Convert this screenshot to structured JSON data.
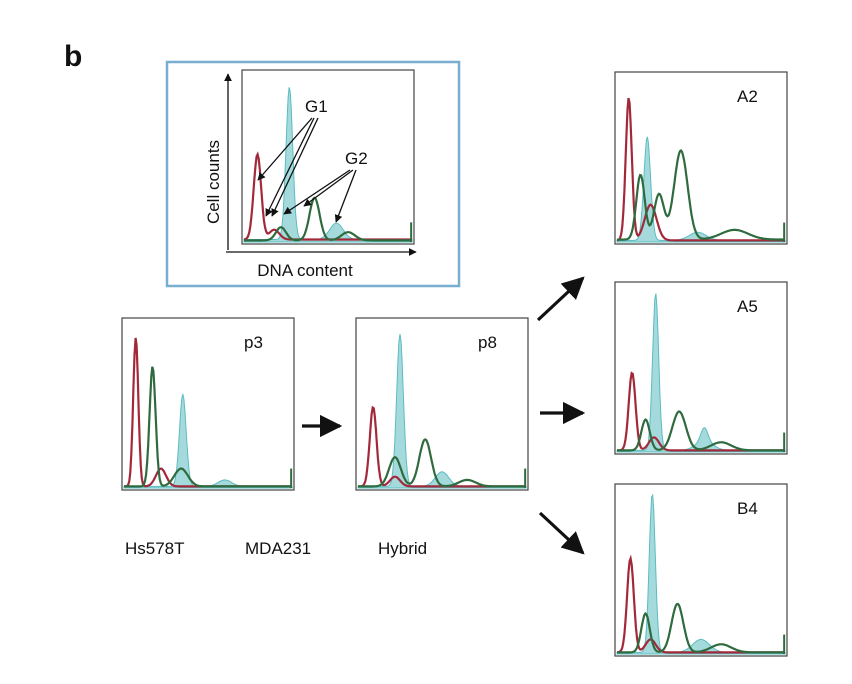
{
  "panel_label": "b",
  "legend": [
    {
      "label": "Hs578T",
      "color": "#a3293a"
    },
    {
      "label": "MDA231",
      "color": "#2f6b3f"
    },
    {
      "label": "Hybrid",
      "color": "#5bbcc0"
    }
  ],
  "inset": {
    "ylabel": "Cell counts",
    "xlabel": "DNA content",
    "annotations": [
      "G1",
      "G2"
    ],
    "border_color": "#7aaed0"
  },
  "chart_data": [
    {
      "type": "area",
      "name": "inset",
      "label": "",
      "x_range": [
        0,
        1
      ],
      "y_range": [
        0,
        1
      ],
      "hs578t": {
        "peaks": [
          [
            0.08,
            0.52,
            0.022
          ],
          [
            0.18,
            0.06,
            0.03
          ]
        ],
        "base": 0.015
      },
      "mda231": {
        "peaks": [
          [
            0.22,
            0.08,
            0.03
          ],
          [
            0.42,
            0.26,
            0.03
          ],
          [
            0.62,
            0.05,
            0.04
          ]
        ],
        "base": 0.01
      },
      "hybrid": {
        "peaks": [
          [
            0.27,
            0.93,
            0.02
          ],
          [
            0.55,
            0.1,
            0.04
          ]
        ],
        "base": 0.015
      }
    },
    {
      "type": "area",
      "name": "p3",
      "label": "p3",
      "x_range": [
        0,
        1
      ],
      "y_range": [
        0,
        1
      ],
      "hs578t": {
        "peaks": [
          [
            0.07,
            0.92,
            0.015
          ],
          [
            0.22,
            0.11,
            0.03
          ]
        ],
        "base": 0.01
      },
      "mda231": {
        "peaks": [
          [
            0.17,
            0.74,
            0.018
          ],
          [
            0.34,
            0.11,
            0.04
          ]
        ],
        "base": 0.01
      },
      "hybrid": {
        "peaks": [
          [
            0.35,
            0.57,
            0.02
          ],
          [
            0.6,
            0.04,
            0.04
          ]
        ],
        "base": 0.01
      }
    },
    {
      "type": "area",
      "name": "p8",
      "label": "p8",
      "x_range": [
        0,
        1
      ],
      "y_range": [
        0,
        1
      ],
      "hs578t": {
        "peaks": [
          [
            0.09,
            0.49,
            0.02
          ],
          [
            0.22,
            0.06,
            0.03
          ]
        ],
        "base": 0.01
      },
      "mda231": {
        "peaks": [
          [
            0.22,
            0.18,
            0.035
          ],
          [
            0.4,
            0.29,
            0.035
          ],
          [
            0.65,
            0.04,
            0.05
          ]
        ],
        "base": 0.01
      },
      "hybrid": {
        "peaks": [
          [
            0.25,
            0.94,
            0.02
          ],
          [
            0.5,
            0.09,
            0.04
          ]
        ],
        "base": 0.01
      }
    },
    {
      "type": "area",
      "name": "A2",
      "label": "A2",
      "x_range": [
        0,
        1
      ],
      "y_range": [
        0,
        1
      ],
      "hs578t": {
        "peaks": [
          [
            0.07,
            0.88,
            0.018
          ],
          [
            0.2,
            0.22,
            0.035
          ]
        ],
        "base": 0.01
      },
      "mda231": {
        "peaks": [
          [
            0.14,
            0.4,
            0.025
          ],
          [
            0.25,
            0.28,
            0.03
          ],
          [
            0.38,
            0.55,
            0.04
          ],
          [
            0.7,
            0.06,
            0.08
          ]
        ],
        "base": 0.015
      },
      "hybrid": {
        "peaks": [
          [
            0.18,
            0.64,
            0.02
          ],
          [
            0.48,
            0.05,
            0.05
          ]
        ],
        "base": 0.01
      }
    },
    {
      "type": "area",
      "name": "A5",
      "label": "A5",
      "x_range": [
        0,
        1
      ],
      "y_range": [
        0,
        1
      ],
      "hs578t": {
        "peaks": [
          [
            0.09,
            0.48,
            0.02
          ],
          [
            0.22,
            0.08,
            0.03
          ]
        ],
        "base": 0.01
      },
      "mda231": {
        "peaks": [
          [
            0.17,
            0.19,
            0.025
          ],
          [
            0.37,
            0.24,
            0.04
          ],
          [
            0.62,
            0.05,
            0.06
          ]
        ],
        "base": 0.01
      },
      "hybrid": {
        "peaks": [
          [
            0.23,
            0.97,
            0.018
          ],
          [
            0.52,
            0.06,
            0.05
          ],
          [
            0.52,
            0.08,
            0.02
          ]
        ],
        "base": 0.01
      }
    },
    {
      "type": "area",
      "name": "B4",
      "label": "B4",
      "x_range": [
        0,
        1
      ],
      "y_range": [
        0,
        1
      ],
      "hs578t": {
        "peaks": [
          [
            0.08,
            0.58,
            0.02
          ],
          [
            0.2,
            0.08,
            0.03
          ]
        ],
        "base": 0.01
      },
      "mda231": {
        "peaks": [
          [
            0.17,
            0.24,
            0.025
          ],
          [
            0.36,
            0.3,
            0.035
          ],
          [
            0.62,
            0.05,
            0.06
          ]
        ],
        "base": 0.01
      },
      "hybrid": {
        "peaks": [
          [
            0.21,
            0.98,
            0.018
          ],
          [
            0.5,
            0.08,
            0.05
          ]
        ],
        "base": 0.01
      }
    }
  ]
}
